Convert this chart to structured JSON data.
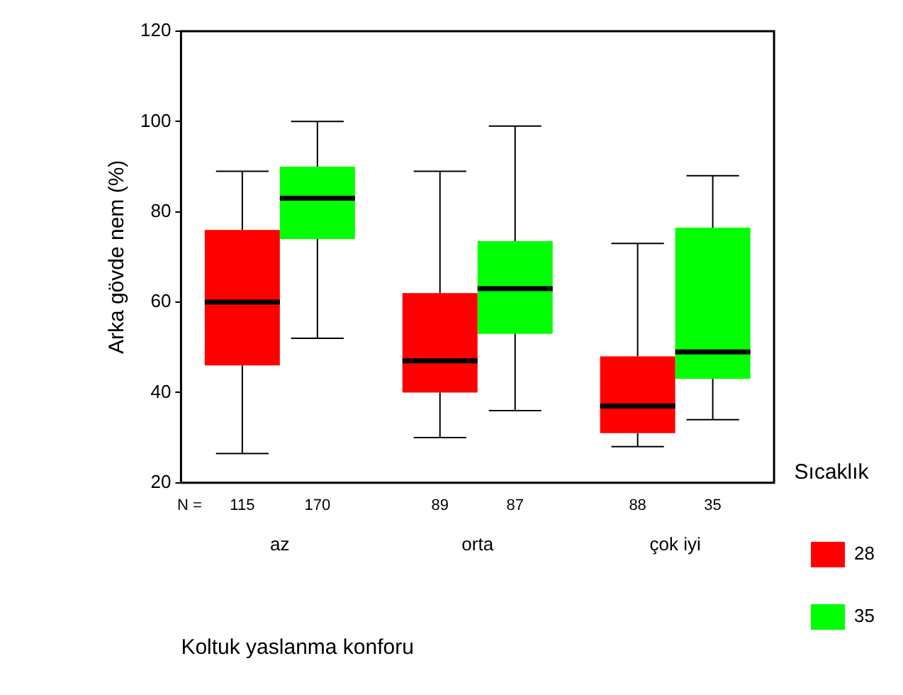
{
  "chart_data": {
    "type": "box",
    "xlabel": "Koltuk yaslanma konforu",
    "ylabel": "Arka gövde nem (%)",
    "legend_title": "Sıcaklık",
    "legend": "right",
    "grid": false,
    "categories": [
      "az",
      "orta",
      "çok iyi"
    ],
    "ylim": [
      20,
      120
    ],
    "yticks": [
      20,
      40,
      60,
      80,
      100,
      120
    ],
    "series": [
      {
        "name": "28",
        "color": "#ff0000",
        "boxes": [
          {
            "low": 26.5,
            "q1": 46,
            "median": 60,
            "q3": 76,
            "high": 89
          },
          {
            "low": 30,
            "q1": 40,
            "median": 47,
            "q3": 62,
            "high": 89
          },
          {
            "low": 28,
            "q1": 31,
            "median": 37,
            "q3": 48,
            "high": 73
          }
        ]
      },
      {
        "name": "35",
        "color": "#00ff00",
        "boxes": [
          {
            "low": 52,
            "q1": 74,
            "median": 83,
            "q3": 90,
            "high": 100
          },
          {
            "low": 36,
            "q1": 53,
            "median": 63,
            "q3": 73.5,
            "high": 99
          },
          {
            "low": 34,
            "q1": 43,
            "median": 49,
            "q3": 76.5,
            "high": 88
          }
        ]
      }
    ],
    "annotations": [
      "N =",
      "115",
      "170",
      "89",
      "87",
      "88",
      "35"
    ]
  }
}
